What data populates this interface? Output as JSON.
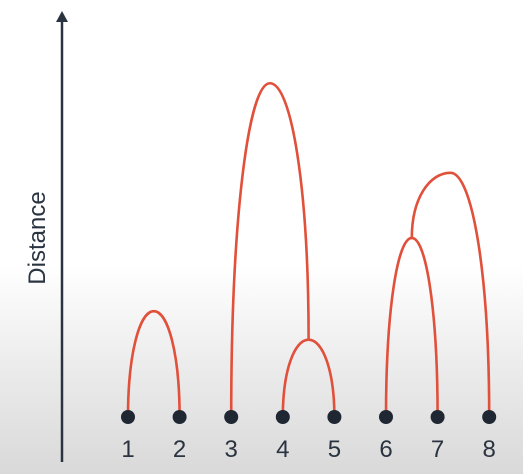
{
  "diagram": {
    "type": "dendrogram",
    "y_axis_label": "Distance",
    "leaves": [
      "1",
      "2",
      "3",
      "4",
      "5",
      "6",
      "7",
      "8"
    ],
    "merges": [
      {
        "id": "m12",
        "left": "leaf:0",
        "right": "leaf:1",
        "height": 0.26
      },
      {
        "id": "m45",
        "left": "leaf:3",
        "right": "leaf:4",
        "height": 0.19
      },
      {
        "id": "m345",
        "left": "leaf:2",
        "right": "merge:m45",
        "height": 0.82
      },
      {
        "id": "m67",
        "left": "leaf:5",
        "right": "leaf:6",
        "height": 0.44
      },
      {
        "id": "m678",
        "left": "merge:m67",
        "right": "leaf:7",
        "height": 0.6
      }
    ]
  },
  "colors": {
    "axis": "#2a3441",
    "branch": "#e0503a",
    "leaf_point": "#1f2732",
    "text": "#2a3441"
  }
}
